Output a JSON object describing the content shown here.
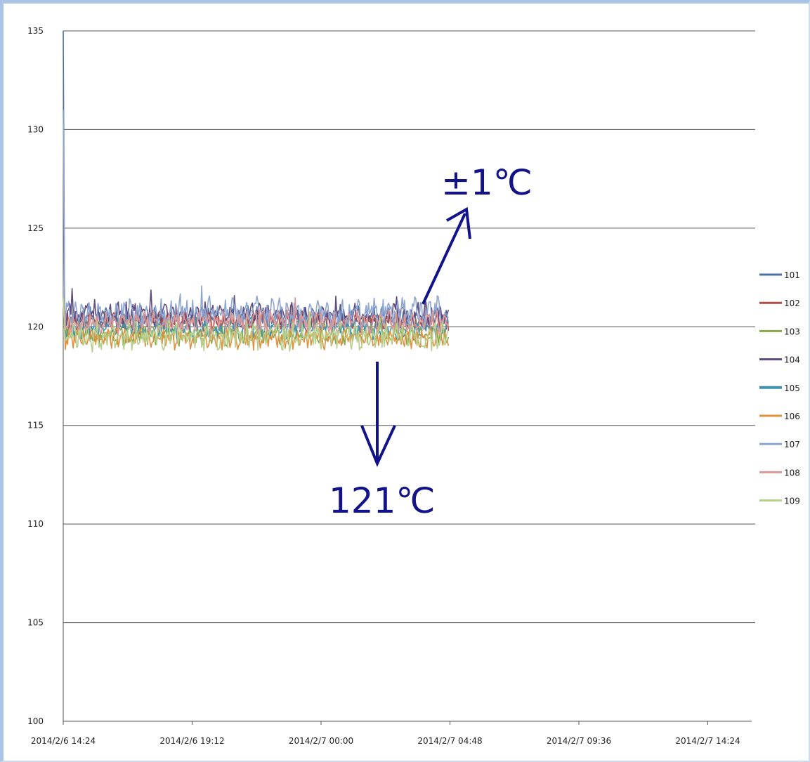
{
  "chart_data": {
    "type": "line",
    "title": "",
    "xlabel": "",
    "ylabel": "",
    "ylim": [
      100,
      135
    ],
    "yticks": [
      "100",
      "105",
      "110",
      "115",
      "120",
      "125",
      "130",
      "135"
    ],
    "xticks": [
      "2014/2/6 14:24",
      "2014/2/6 19:12",
      "2014/2/7 00:00",
      "2014/2/7 04:48",
      "2014/2/7 09:36",
      "2014/2/7 14:24"
    ],
    "x_range": [
      "2014/2/6 14:24",
      "2014/2/7 16:30"
    ],
    "data_end": "2014/2/7 04:40",
    "grid": "horizontal",
    "legend_position": "right",
    "series": [
      {
        "name": "101",
        "color": "#4a72a8",
        "mean": 120.4,
        "amplitude": 0.45
      },
      {
        "name": "102",
        "color": "#b44a46",
        "mean": 120.3,
        "amplitude": 0.4
      },
      {
        "name": "103",
        "color": "#8aa846",
        "mean": 119.6,
        "amplitude": 0.4
      },
      {
        "name": "104",
        "color": "#5e4a7e",
        "mean": 120.6,
        "amplitude": 0.45
      },
      {
        "name": "105",
        "color": "#3f93ad",
        "mean": 119.9,
        "amplitude": 0.4
      },
      {
        "name": "106",
        "color": "#e0913f",
        "mean": 119.4,
        "amplitude": 0.4
      },
      {
        "name": "107",
        "color": "#8ea6d0",
        "mean": 120.7,
        "amplitude": 0.6
      },
      {
        "name": "108",
        "color": "#d99a98",
        "mean": 120.2,
        "amplitude": 0.45
      },
      {
        "name": "109",
        "color": "#b7cf8b",
        "mean": 119.5,
        "amplitude": 0.55
      }
    ],
    "annotations": [
      {
        "text": "±1℃"
      },
      {
        "text": "121℃"
      }
    ]
  }
}
